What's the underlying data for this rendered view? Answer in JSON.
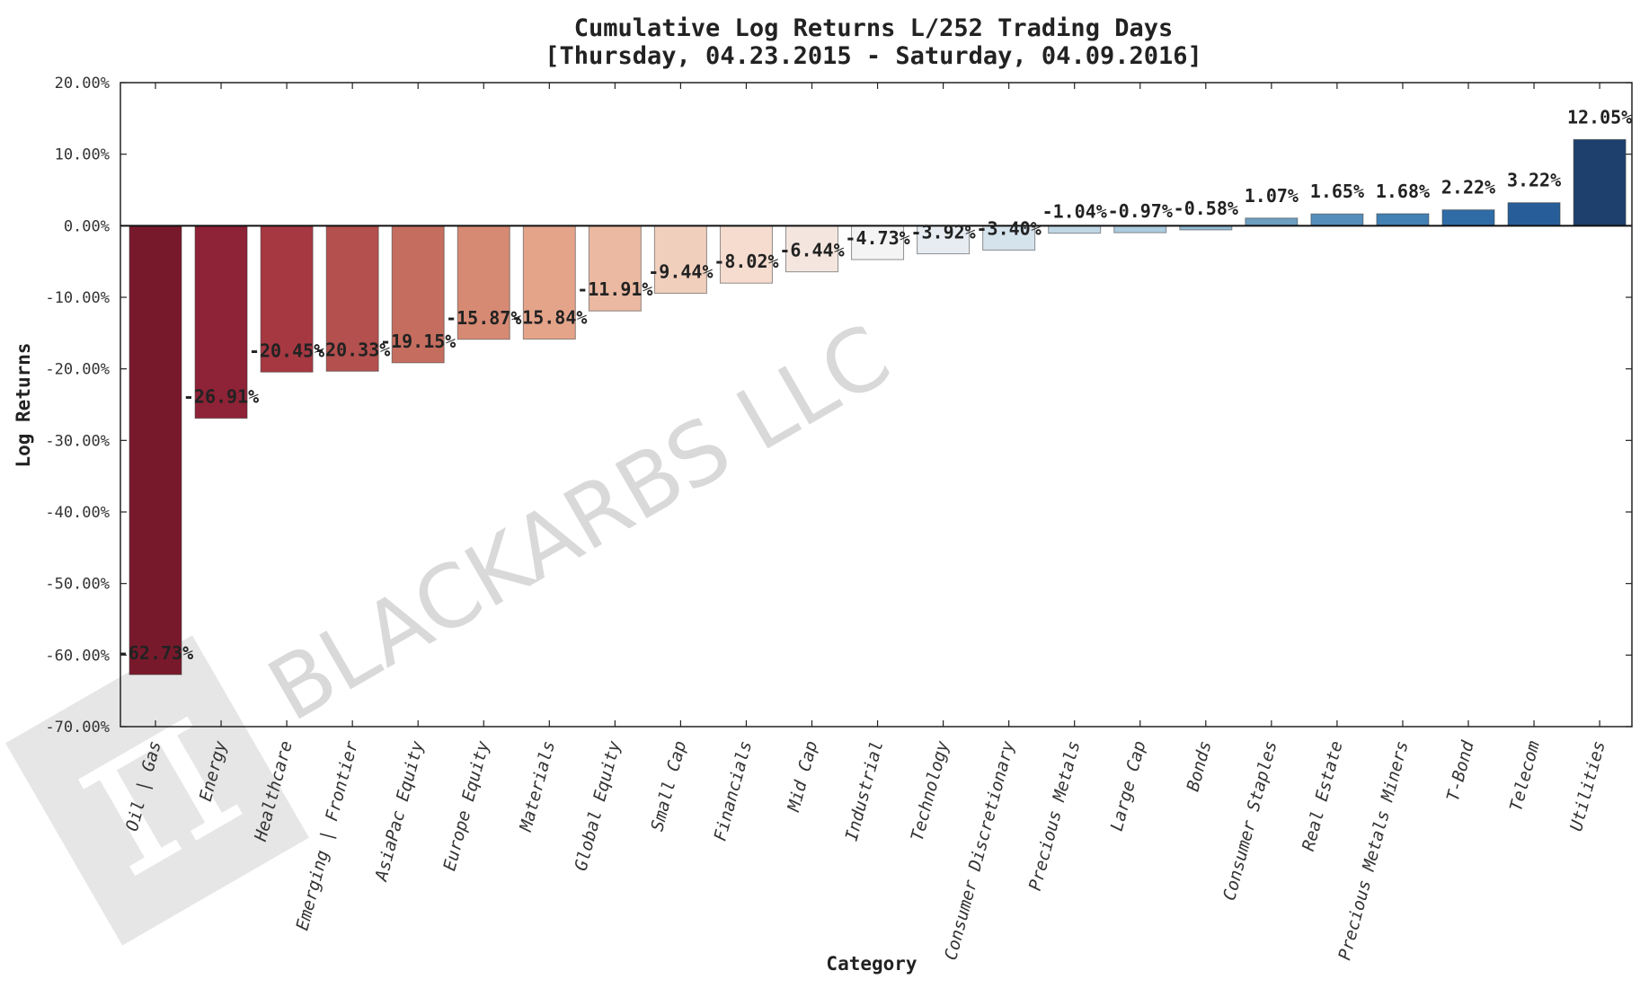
{
  "chart_data": {
    "type": "bar",
    "title_line1": "Cumulative Log Returns L/252 Trading Days",
    "title_line2": "[Thursday, 04.23.2015 - Saturday, 04.09.2016]",
    "xlabel": "Category",
    "ylabel": "Log Returns",
    "ylim": [
      -70,
      20
    ],
    "yticks": [
      20,
      10,
      0,
      -10,
      -20,
      -30,
      -40,
      -50,
      -60,
      -70
    ],
    "ytick_labels": [
      "20.00%",
      "10.00%",
      "0.00%",
      "-10.00%",
      "-20.00%",
      "-30.00%",
      "-40.00%",
      "-50.00%",
      "-60.00%",
      "-70.00%"
    ],
    "categories": [
      "Oil | Gas",
      "Energy",
      "Healthcare",
      "Emerging | Frontier",
      "AsiaPac Equity",
      "Europe Equity",
      "Materials",
      "Global Equity",
      "Small Cap",
      "Financials",
      "Mid Cap",
      "Industrial",
      "Technology",
      "Consumer Discretionary",
      "Precious Metals",
      "Large Cap",
      "Bonds",
      "Consumer Staples",
      "Real Estate",
      "Precious Metals Miners",
      "T-Bond",
      "Telecom",
      "Utilities"
    ],
    "values": [
      -62.73,
      -26.91,
      -20.45,
      -20.33,
      -19.15,
      -15.87,
      -15.84,
      -11.91,
      -9.44,
      -8.02,
      -6.44,
      -4.73,
      -3.92,
      -3.4,
      -1.04,
      -0.97,
      -0.58,
      1.07,
      1.65,
      1.68,
      2.22,
      3.22,
      12.05
    ],
    "value_labels": [
      "-62.73%",
      "-26.91%",
      "-20.45%",
      "-20.33%",
      "-19.15%",
      "-15.87%",
      "-15.84%",
      "-11.91%",
      "-9.44%",
      "-8.02%",
      "-6.44%",
      "-4.73%",
      "-3.92%",
      "-3.40%",
      "-1.04%",
      "-0.97%",
      "-0.58%",
      "1.07%",
      "1.65%",
      "1.68%",
      "2.22%",
      "3.22%",
      "12.05%"
    ],
    "colors": [
      "#78192b",
      "#8e2236",
      "#a63842",
      "#b4504e",
      "#c56e5f",
      "#d68a74",
      "#e4a48a",
      "#ebb9a1",
      "#f1cfbd",
      "#f5dccf",
      "#f4e6df",
      "#f4f4f4",
      "#e6ecf1",
      "#d5e3ed",
      "#c0d8e6",
      "#acccdf",
      "#94bcd6",
      "#6d9fc1",
      "#558ebb",
      "#4380b3",
      "#2f6ca6",
      "#275e99",
      "#1d406d"
    ]
  },
  "watermark": {
    "text": "BLACKARBS LLC",
    "logo_glyph": "π"
  }
}
